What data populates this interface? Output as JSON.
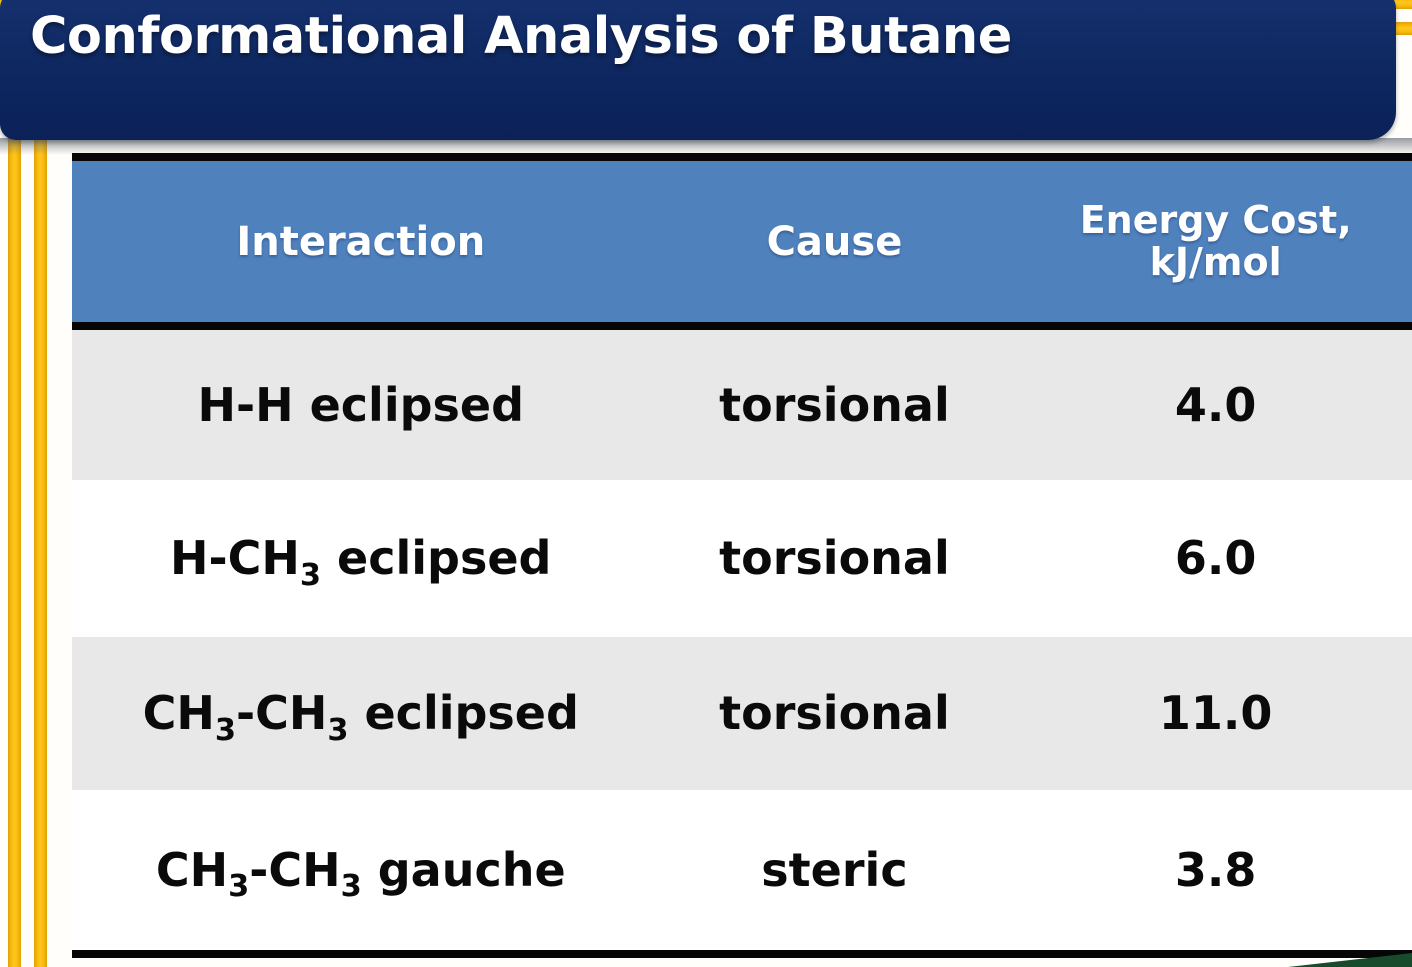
{
  "slide": {
    "title": "Conformational Analysis of Butane"
  },
  "table": {
    "headers": [
      {
        "text": "Interaction"
      },
      {
        "text": "Cause"
      },
      {
        "line1": "Energy Cost,",
        "line2": "kJ/mol"
      }
    ],
    "rows": [
      {
        "interaction": "H-H eclipsed",
        "cause": "torsional",
        "energy": "4.0"
      },
      {
        "interaction": "H-CH{3} eclipsed",
        "cause": "torsional",
        "energy": "6.0"
      },
      {
        "interaction": "CH{3}-CH{3} eclipsed",
        "cause": "torsional",
        "energy": "11.0"
      },
      {
        "interaction": "CH{3}-CH{3} gauche",
        "cause": "steric",
        "energy": "3.8"
      }
    ]
  },
  "colors": {
    "banner_navy": "#0e2760",
    "header_blue": "#4f81bd",
    "row_gray": "#e8e8e8",
    "stripe_gold": "#f8b90c",
    "border_black": "#060606",
    "wedge_green": "#184b2c"
  },
  "chart_data": {
    "type": "table",
    "title": "Conformational Analysis of Butane",
    "columns": [
      "Interaction",
      "Cause",
      "Energy Cost, kJ/mol"
    ],
    "rows": [
      [
        "H-H eclipsed",
        "torsional",
        4.0
      ],
      [
        "H-CH3 eclipsed",
        "torsional",
        6.0
      ],
      [
        "CH3-CH3 eclipsed",
        "torsional",
        11.0
      ],
      [
        "CH3-CH3 gauche",
        "steric",
        3.8
      ]
    ]
  }
}
